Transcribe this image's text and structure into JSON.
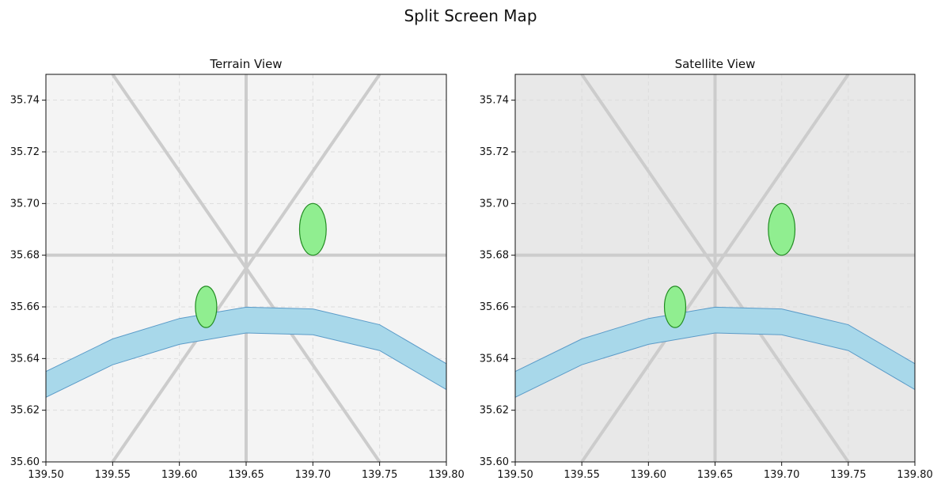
{
  "title": "Split Screen Map",
  "colors": {
    "terrain_background": "#f4f4f4",
    "satellite_background": "#e8e8e8",
    "road": "#cccccc",
    "water_fill": "#a8d8ea",
    "water_edge": "#5b9bc8",
    "park_fill": "#90ee90",
    "park_edge": "#228b22",
    "grid": "#dddddd",
    "axis": "#111111"
  },
  "chart_data": [
    {
      "type": "map",
      "title": "Terrain View",
      "background_color": "#f4f4f4",
      "xlim": [
        139.5,
        139.8
      ],
      "ylim": [
        35.6,
        35.75
      ],
      "x_ticks": [
        "139.50",
        "139.55",
        "139.60",
        "139.65",
        "139.70",
        "139.75",
        "139.80"
      ],
      "y_ticks": [
        "35.60",
        "35.62",
        "35.64",
        "35.66",
        "35.68",
        "35.70",
        "35.72",
        "35.74"
      ],
      "grid": true,
      "roads": [
        {
          "name": "horizontal-road",
          "points": [
            [
              139.5,
              35.68
            ],
            [
              139.8,
              35.68
            ]
          ]
        },
        {
          "name": "vertical-road",
          "points": [
            [
              139.65,
              35.6
            ],
            [
              139.65,
              35.75
            ]
          ]
        },
        {
          "name": "diagonal-road-rising",
          "points": [
            [
              139.55,
              35.6
            ],
            [
              139.75,
              35.75
            ]
          ]
        },
        {
          "name": "diagonal-road-falling",
          "points": [
            [
              139.55,
              35.75
            ],
            [
              139.75,
              35.6
            ]
          ]
        }
      ],
      "river": {
        "center_points": [
          [
            139.5,
            35.63
          ],
          [
            139.55,
            35.6426
          ],
          [
            139.6,
            35.6505
          ],
          [
            139.65,
            35.6549
          ],
          [
            139.7,
            35.6542
          ],
          [
            139.75,
            35.6481
          ],
          [
            139.8,
            35.633
          ]
        ],
        "half_width": 0.005
      },
      "parks": [
        {
          "name": "park-1",
          "center": [
            139.62,
            35.66
          ],
          "width": 0.016,
          "height": 0.016
        },
        {
          "name": "park-2",
          "center": [
            139.7,
            35.69
          ],
          "width": 0.02,
          "height": 0.02
        }
      ]
    },
    {
      "type": "map",
      "title": "Satellite View",
      "background_color": "#e8e8e8",
      "xlim": [
        139.5,
        139.8
      ],
      "ylim": [
        35.6,
        35.75
      ],
      "x_ticks": [
        "139.50",
        "139.55",
        "139.60",
        "139.65",
        "139.70",
        "139.75",
        "139.80"
      ],
      "y_ticks": [
        "35.60",
        "35.62",
        "35.64",
        "35.66",
        "35.68",
        "35.70",
        "35.72",
        "35.74"
      ],
      "grid": true,
      "roads": [
        {
          "name": "horizontal-road",
          "points": [
            [
              139.5,
              35.68
            ],
            [
              139.8,
              35.68
            ]
          ]
        },
        {
          "name": "vertical-road",
          "points": [
            [
              139.65,
              35.6
            ],
            [
              139.65,
              35.75
            ]
          ]
        },
        {
          "name": "diagonal-road-rising",
          "points": [
            [
              139.55,
              35.6
            ],
            [
              139.75,
              35.75
            ]
          ]
        },
        {
          "name": "diagonal-road-falling",
          "points": [
            [
              139.55,
              35.75
            ],
            [
              139.75,
              35.6
            ]
          ]
        }
      ],
      "river": {
        "center_points": [
          [
            139.5,
            35.63
          ],
          [
            139.55,
            35.6426
          ],
          [
            139.6,
            35.6505
          ],
          [
            139.65,
            35.6549
          ],
          [
            139.7,
            35.6542
          ],
          [
            139.75,
            35.6481
          ],
          [
            139.8,
            35.633
          ]
        ],
        "half_width": 0.005
      },
      "parks": [
        {
          "name": "park-1",
          "center": [
            139.62,
            35.66
          ],
          "width": 0.016,
          "height": 0.016
        },
        {
          "name": "park-2",
          "center": [
            139.7,
            35.69
          ],
          "width": 0.02,
          "height": 0.02
        }
      ]
    }
  ]
}
